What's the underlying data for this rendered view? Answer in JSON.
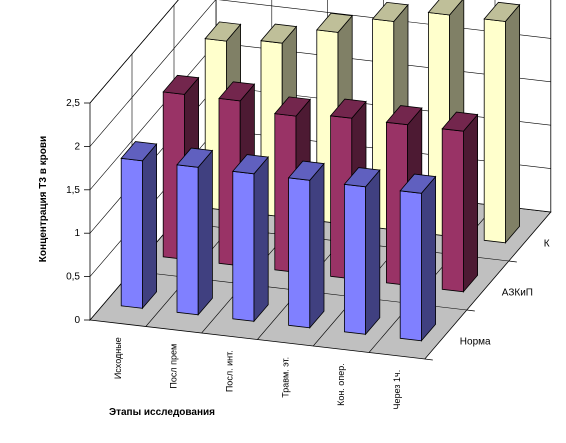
{
  "chart_data": {
    "type": "bar",
    "subtype": "3d-column",
    "title": "",
    "ylabel": "Концентрация Т3 в крови",
    "xlabel": "Этапы исследования",
    "categories": [
      "Исходные",
      "Посл прем",
      "Посл. инт.",
      "Травм. эт.",
      "Кон. опер.",
      "Через 1ч."
    ],
    "yticks": [
      "0",
      "0,5",
      "1",
      "1,5",
      "2",
      "2,5"
    ],
    "ylim": [
      0,
      2.5
    ],
    "grid": true,
    "series": [
      {
        "name": "Норма",
        "values": [
          1.7,
          1.7,
          1.7,
          1.7,
          1.7,
          1.7
        ],
        "color": "#8080ff"
      },
      {
        "name": "АЗКиП",
        "values": [
          1.9,
          1.9,
          1.8,
          1.85,
          1.85,
          1.85
        ],
        "color": "#993366"
      },
      {
        "name": "К",
        "values": [
          1.95,
          2.0,
          2.2,
          2.4,
          2.55,
          2.55
        ],
        "color": "#ffffcc"
      }
    ]
  }
}
